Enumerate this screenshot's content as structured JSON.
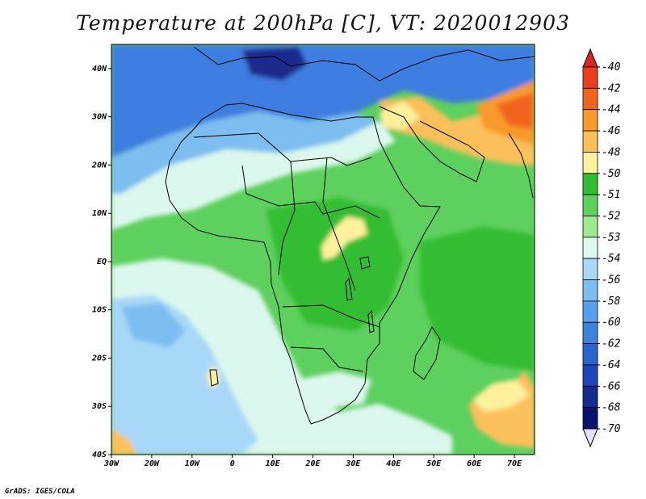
{
  "title": "Temperature at 200hPa [C], VT: 2020012903",
  "credit": "GrADS: IGES/COLA",
  "map": {
    "lon_range": [
      -30,
      75
    ],
    "lat_range": [
      -40,
      45
    ],
    "lon_labels": [
      "30W",
      "20W",
      "10W",
      "0",
      "10E",
      "20E",
      "30E",
      "40E",
      "50E",
      "60E",
      "70E"
    ],
    "lat_labels": [
      "40N",
      "30N",
      "20N",
      "10N",
      "EQ",
      "10S",
      "20S",
      "30S",
      "40S"
    ]
  },
  "colorbar": {
    "labels": [
      "-40",
      "-42",
      "-44",
      "-46",
      "-48",
      "-50",
      "-51",
      "-52",
      "-53",
      "-54",
      "-56",
      "-58",
      "-60",
      "-62",
      "-64",
      "-66",
      "-68",
      "-70"
    ],
    "colors": {
      "top_arrow": "#d8271e",
      "bins": [
        "#e8401e",
        "#f0641e",
        "#f89a2c",
        "#fcc05a",
        "#fff19e",
        "#32bd32",
        "#5dd05d",
        "#a0e890",
        "#dcf8ee",
        "#a8d8f8",
        "#7dbef0",
        "#5aa0e8",
        "#3c82dc",
        "#2a64cc",
        "#1e46b8",
        "#142c8c",
        "#0a146e"
      ],
      "bottom_arrow": "#e2e2f8"
    }
  },
  "field_colors": {
    "cold_deep": "#1c2c8c",
    "cold_mid": "#3c7ee0",
    "cold_light": "#7dbef0",
    "pale": "#dcf8ee",
    "green_light": "#a0e890",
    "green_mid": "#5dd05d",
    "green_dark": "#32bd32",
    "yellow": "#fff19e",
    "orange_light": "#fcc05a",
    "orange": "#f89a2c",
    "red_orange": "#f0641e"
  }
}
